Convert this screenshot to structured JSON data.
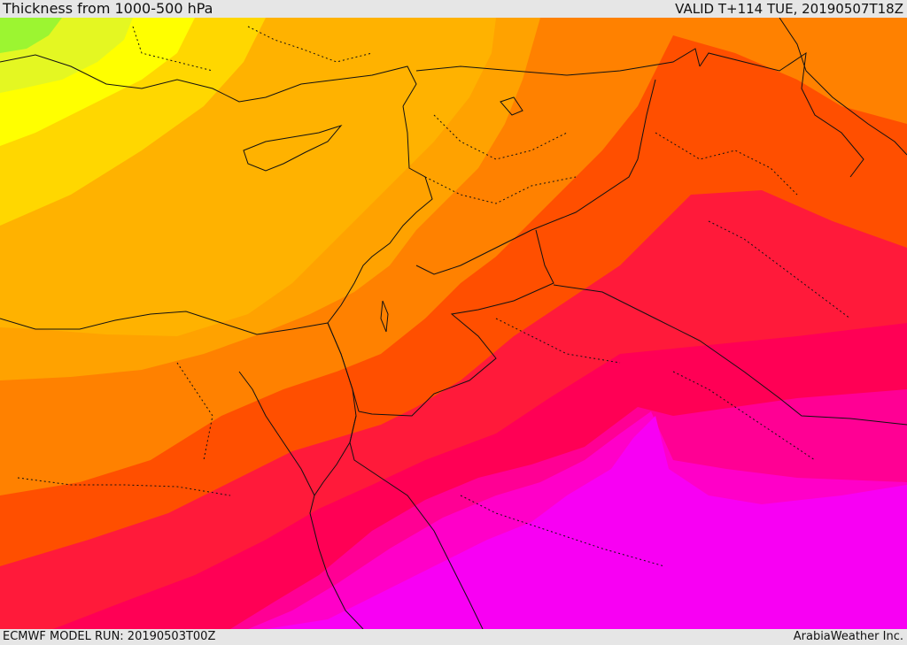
{
  "header": {
    "title": "Thickness from 1000-500 hPa",
    "valid": "VALID T+114 TUE, 20190507T18Z"
  },
  "footer": {
    "model_run": "ECMWF MODEL RUN: 20190503T00Z",
    "credit": "ArabiaWeather Inc."
  },
  "map": {
    "colors": {
      "green": "#9cf531",
      "yellow_green": "#e4f722",
      "yellow": "#ffff00",
      "light_orange_yellow": "#ffd700",
      "light_orange": "#ffb200",
      "orange": "#ffa200",
      "dark_orange": "#ff8100",
      "red_orange": "#ff4f00",
      "red": "#ff1a3a",
      "crimson": "#ff0055",
      "magenta_red": "#ff0094",
      "magenta": "#ff00c8",
      "fuchsia": "#f800f3",
      "border": "#111111"
    }
  }
}
